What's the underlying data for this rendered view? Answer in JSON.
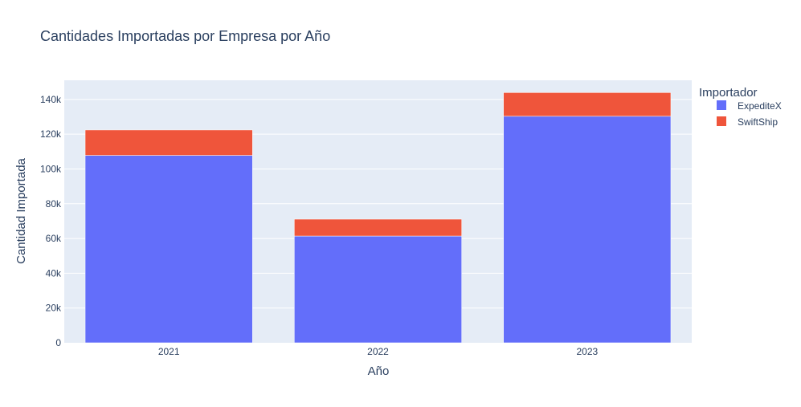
{
  "chart_data": {
    "type": "bar",
    "barmode": "stack",
    "title": "Cantidades Importadas por Empresa por Año",
    "xlabel": "Año",
    "ylabel": "Cantidad Importada",
    "categories": [
      "2021",
      "2022",
      "2023"
    ],
    "series": [
      {
        "name": "ExpediteX",
        "color": "#636efa",
        "values": [
          107800,
          61400,
          130300
        ]
      },
      {
        "name": "SwiftShip",
        "color": "#ef553b",
        "values": [
          14600,
          9700,
          13600
        ]
      }
    ],
    "ylim": [
      0,
      151000
    ],
    "yticks": [
      0,
      20000,
      40000,
      60000,
      80000,
      100000,
      120000,
      140000
    ],
    "ytick_labels": [
      "0",
      "20k",
      "40k",
      "60k",
      "80k",
      "100k",
      "120k",
      "140k"
    ],
    "grid": true,
    "legend_title": "Importador",
    "legend_position": "top-right",
    "plot_background": "#e5ecf6"
  }
}
